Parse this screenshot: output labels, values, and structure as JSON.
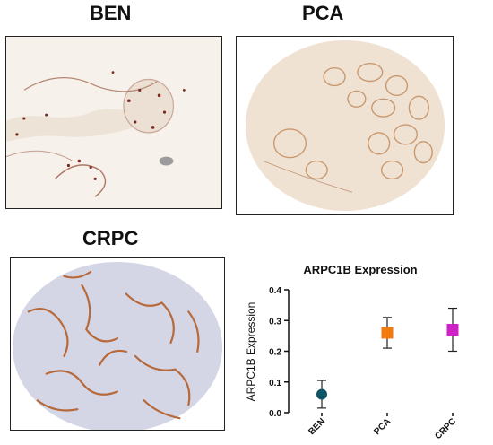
{
  "panels": [
    {
      "id": "ben",
      "title": "BEN"
    },
    {
      "id": "pca",
      "title": "PCA"
    },
    {
      "id": "crpc",
      "title": "CRPC"
    }
  ],
  "colors": {
    "stain_brown": "#a0522d",
    "tissue_blue": "#c9cbe0",
    "ben_marker": "#0d5566",
    "pca_marker": "#f07a10",
    "crpc_marker": "#d020c8"
  },
  "chart_data": {
    "type": "scatter",
    "title": "ARPC1B Expression",
    "xlabel": "",
    "ylabel": "ARPC1B Expression",
    "categories": [
      "BEN",
      "PCA",
      "CRPC"
    ],
    "ylim": [
      0.0,
      0.4
    ],
    "yticks": [
      "0.0",
      "0.1",
      "0.2",
      "0.3",
      "0.4"
    ],
    "points": [
      {
        "category": "BEN",
        "mean": 0.06,
        "low": 0.015,
        "high": 0.105,
        "marker": "circle",
        "color": "#0d5566"
      },
      {
        "category": "PCA",
        "mean": 0.26,
        "low": 0.21,
        "high": 0.31,
        "marker": "square",
        "color": "#f07a10"
      },
      {
        "category": "CRPC",
        "mean": 0.27,
        "low": 0.2,
        "high": 0.34,
        "marker": "square",
        "color": "#d020c8"
      }
    ],
    "grid": false,
    "legend": "none"
  }
}
